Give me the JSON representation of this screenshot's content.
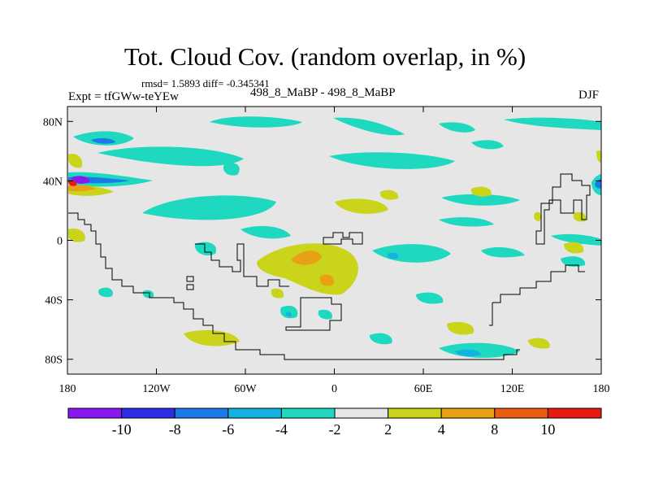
{
  "chart_data": {
    "type": "contour-map",
    "title": "Tot. Cloud Cov. (random overlap, in %)",
    "stats_text": "rmsd= 1.5893 diff= -0.345341",
    "rmsd": 1.5893,
    "diff": -0.345341,
    "left_label": "Expt = tfGWw-teYEw",
    "center_label": "498_8_MaBP - 498_8_MaBP",
    "right_label": "DJF",
    "x_ticks": [
      "180",
      "120W",
      "60W",
      "0",
      "60E",
      "120E",
      "180"
    ],
    "x_tick_lon": [
      -180,
      -120,
      -60,
      0,
      60,
      120,
      180
    ],
    "y_ticks": [
      "80N",
      "40N",
      "0",
      "40S",
      "80S"
    ],
    "y_tick_lat": [
      80,
      40,
      0,
      -40,
      -80
    ],
    "xlim": [
      -180,
      180
    ],
    "ylim": [
      -90,
      90
    ],
    "colorbar": {
      "levels": [
        "-10",
        "-8",
        "-6",
        "-4",
        "-2",
        "2",
        "4",
        "8",
        "10"
      ],
      "colors": [
        "#8a19f0",
        "#2d2de6",
        "#1a7ae8",
        "#12b3e0",
        "#1ed8c0",
        "#e6e6e6",
        "#c9d41a",
        "#e8a015",
        "#ea5c10",
        "#e61a10"
      ]
    },
    "fill_colors": {
      "background": "#e6e6e6",
      "neg2": "#1ed8c0",
      "neg4": "#12b3e0",
      "neg6": "#1a7ae8",
      "neg8": "#2d2de6",
      "pos2": "#c9d41a",
      "pos4": "#e8a015",
      "pos8": "#ea5c10",
      "pos10": "#e61a10"
    }
  }
}
